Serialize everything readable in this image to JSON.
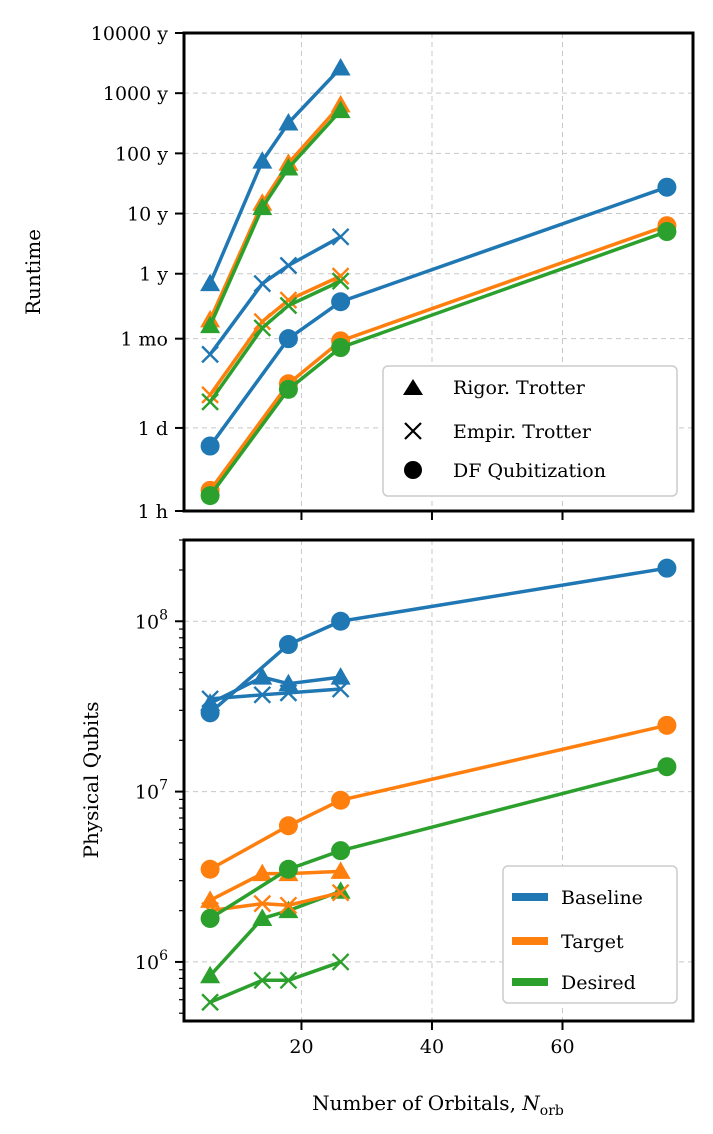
{
  "chart_data": [
    {
      "type": "line",
      "panel": "top",
      "ylabel": "Runtime",
      "yscale": "log",
      "y_units": "hours",
      "ytick_values": [
        1,
        24,
        730,
        8760,
        87600,
        876000,
        8760000,
        87600000
      ],
      "ytick_labels": [
        "1 h",
        "1 d",
        "1 mo",
        "1 y",
        "10 y",
        "100 y",
        "1000 y",
        "10000 y"
      ],
      "xlim": [
        2,
        80
      ],
      "ylim": [
        1,
        87600000
      ],
      "grid": true,
      "legend": {
        "placement": "lower-right",
        "entries": [
          {
            "marker": "triangle",
            "label": "Rigor. Trotter"
          },
          {
            "marker": "x",
            "label": "Empir. Trotter"
          },
          {
            "marker": "circle",
            "label": "DF Qubitization"
          }
        ]
      },
      "series": [
        {
          "name": "Baseline",
          "method": "Rigor. Trotter",
          "color": "#1f77b4",
          "x": [
            6,
            14,
            18,
            26
          ],
          "y": [
            6000,
            650000,
            2800000,
            23000000
          ]
        },
        {
          "name": "Target",
          "method": "Rigor. Trotter",
          "color": "#ff7f0e",
          "x": [
            6,
            14,
            18,
            26
          ],
          "y": [
            1500,
            130000,
            600000,
            5600000
          ]
        },
        {
          "name": "Desired",
          "method": "Rigor. Trotter",
          "color": "#2ca02c",
          "x": [
            6,
            14,
            18,
            26
          ],
          "y": [
            1200,
            110000,
            500000,
            4500000
          ]
        },
        {
          "name": "Baseline",
          "method": "Empir. Trotter",
          "color": "#1f77b4",
          "x": [
            6,
            14,
            18,
            26
          ],
          "y": [
            400,
            6000,
            12000,
            36000
          ]
        },
        {
          "name": "Target",
          "method": "Empir. Trotter",
          "color": "#ff7f0e",
          "x": [
            6,
            14,
            18,
            26
          ],
          "y": [
            85,
            1400,
            3200,
            8000
          ]
        },
        {
          "name": "Desired",
          "method": "Empir. Trotter",
          "color": "#2ca02c",
          "x": [
            6,
            14,
            18,
            26
          ],
          "y": [
            65,
            1100,
            2600,
            6600
          ]
        },
        {
          "name": "Baseline",
          "method": "DF Qubitization",
          "color": "#1f77b4",
          "x": [
            6,
            18,
            26,
            76
          ],
          "y": [
            12,
            730,
            3000,
            240000
          ]
        },
        {
          "name": "Target",
          "method": "DF Qubitization",
          "color": "#ff7f0e",
          "x": [
            6,
            18,
            26,
            76
          ],
          "y": [
            2.2,
            130,
            670,
            55000
          ]
        },
        {
          "name": "Desired",
          "method": "DF Qubitization",
          "color": "#2ca02c",
          "x": [
            6,
            18,
            26,
            76
          ],
          "y": [
            1.8,
            105,
            520,
            44000
          ]
        }
      ]
    },
    {
      "type": "line",
      "panel": "bottom",
      "xlabel": "Number of Orbitals, N_orb",
      "xlabel_prefix": "Number of Orbitals, ",
      "xlabel_var": "N",
      "xlabel_sub": "orb",
      "ylabel": "Physical Qubits",
      "yscale": "log",
      "ytick_values": [
        1000000,
        10000000,
        100000000
      ],
      "ytick_labels": [
        {
          "base": "10",
          "exp": "6"
        },
        {
          "base": "10",
          "exp": "7"
        },
        {
          "base": "10",
          "exp": "8"
        }
      ],
      "xtick_values": [
        20,
        40,
        60
      ],
      "xtick_labels": [
        "20",
        "40",
        "60"
      ],
      "xlim": [
        2,
        80
      ],
      "ylim": [
        450000,
        300000000
      ],
      "grid": true,
      "legend": {
        "placement": "lower-right",
        "entries": [
          {
            "label": "Baseline",
            "color": "#1f77b4"
          },
          {
            "label": "Target",
            "color": "#ff7f0e"
          },
          {
            "label": "Desired",
            "color": "#2ca02c"
          }
        ]
      },
      "series": [
        {
          "name": "Baseline",
          "method": "Rigor. Trotter",
          "color": "#1f77b4",
          "x": [
            6,
            14,
            18,
            26
          ],
          "y": [
            33000000,
            47000000,
            43000000,
            47000000
          ]
        },
        {
          "name": "Target",
          "method": "Rigor. Trotter",
          "color": "#ff7f0e",
          "x": [
            6,
            14,
            18,
            26
          ],
          "y": [
            2300000,
            3300000,
            3300000,
            3400000
          ]
        },
        {
          "name": "Desired",
          "method": "Rigor. Trotter",
          "color": "#2ca02c",
          "x": [
            6,
            14,
            18,
            26
          ],
          "y": [
            830000,
            1800000,
            2000000,
            2600000
          ]
        },
        {
          "name": "Baseline",
          "method": "Empir. Trotter",
          "color": "#1f77b4",
          "x": [
            6,
            14,
            18,
            26
          ],
          "y": [
            35000000,
            37000000,
            38000000,
            40000000
          ]
        },
        {
          "name": "Target",
          "method": "Empir. Trotter",
          "color": "#ff7f0e",
          "x": [
            6,
            14,
            18,
            26
          ],
          "y": [
            2000000,
            2200000,
            2150000,
            2550000
          ]
        },
        {
          "name": "Desired",
          "method": "Empir. Trotter",
          "color": "#2ca02c",
          "x": [
            6,
            14,
            18,
            26
          ],
          "y": [
            580000,
            780000,
            780000,
            1000000
          ]
        },
        {
          "name": "Baseline",
          "method": "DF Qubitization",
          "color": "#1f77b4",
          "x": [
            6,
            18,
            26,
            76
          ],
          "y": [
            29000000,
            73000000,
            100000000,
            205000000
          ]
        },
        {
          "name": "Target",
          "method": "DF Qubitization",
          "color": "#ff7f0e",
          "x": [
            6,
            18,
            26,
            76
          ],
          "y": [
            3500000,
            6300000,
            8900000,
            24500000
          ]
        },
        {
          "name": "Desired",
          "method": "DF Qubitization",
          "color": "#2ca02c",
          "x": [
            6,
            18,
            26,
            76
          ],
          "y": [
            1800000,
            3500000,
            4500000,
            14000000
          ]
        }
      ]
    }
  ]
}
